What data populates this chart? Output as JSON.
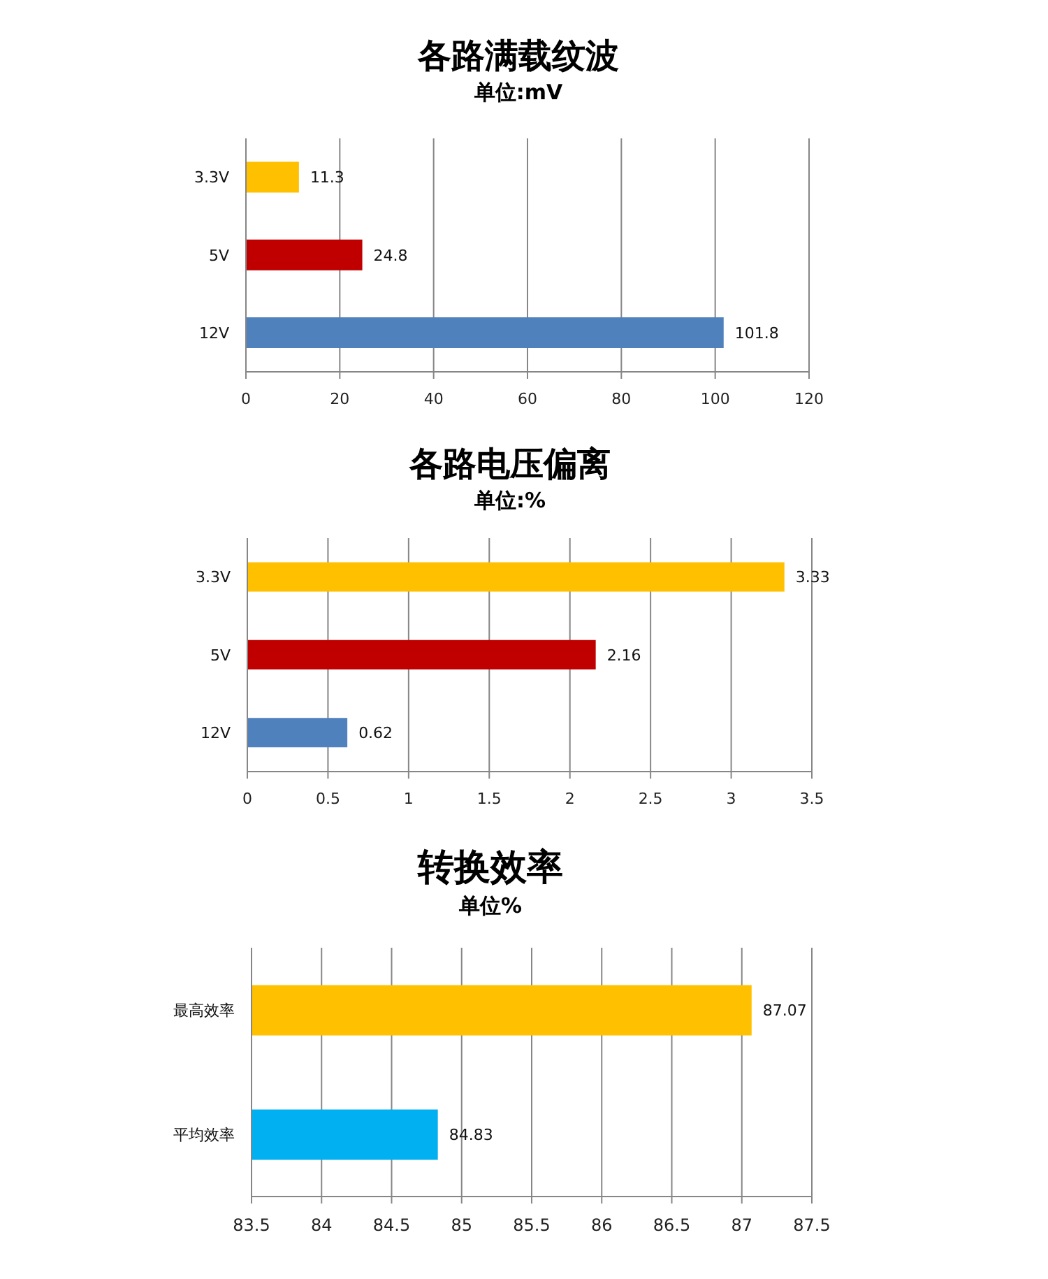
{
  "chart_data": [
    {
      "type": "bar",
      "orientation": "horizontal",
      "title": "各路满载纹波",
      "subtitle": "单位:mV",
      "categories": [
        "3.3V",
        "5V",
        "12V"
      ],
      "values": [
        11.3,
        24.8,
        101.8
      ],
      "colors": [
        "#ffc000",
        "#c00000",
        "#4f81bd"
      ],
      "xlim": [
        0,
        120
      ],
      "xticks": [
        0,
        20,
        40,
        60,
        80,
        100,
        120
      ],
      "grid": "x",
      "data_labels": true
    },
    {
      "type": "bar",
      "orientation": "horizontal",
      "title": "各路电压偏离",
      "subtitle": "单位:%",
      "categories": [
        "3.3V",
        "5V",
        "12V"
      ],
      "values": [
        3.33,
        2.16,
        0.62
      ],
      "colors": [
        "#ffc000",
        "#c00000",
        "#4f81bd"
      ],
      "xlim": [
        0,
        3.5
      ],
      "xticks": [
        0,
        0.5,
        1,
        1.5,
        2,
        2.5,
        3,
        3.5
      ],
      "grid": "x",
      "data_labels": true
    },
    {
      "type": "bar",
      "orientation": "horizontal",
      "title": "转换效率",
      "subtitle": "单位%",
      "categories": [
        "最高效率",
        "平均效率"
      ],
      "values": [
        87.07,
        84.83
      ],
      "colors": [
        "#ffc000",
        "#00b0f0"
      ],
      "xlim": [
        83.5,
        87.5
      ],
      "xticks": [
        83.5,
        84,
        84.5,
        85,
        85.5,
        86,
        86.5,
        87,
        87.5
      ],
      "grid": "x",
      "data_labels": true
    }
  ]
}
